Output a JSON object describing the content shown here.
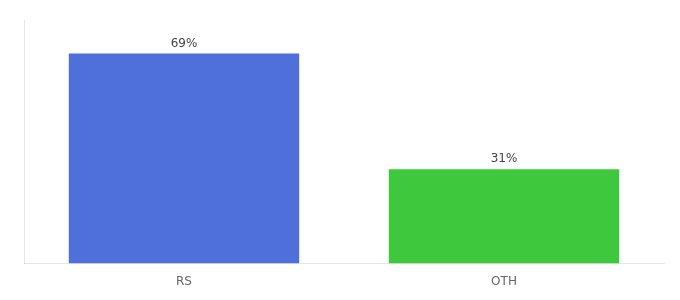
{
  "chart_data": {
    "type": "bar",
    "categories": [
      "RS",
      "OTH"
    ],
    "values": [
      69,
      31
    ],
    "value_labels": [
      "69%",
      "31%"
    ],
    "colors": [
      "#4f6fdb",
      "#3dc83d"
    ],
    "ylim": [
      0,
      80
    ],
    "grid": false,
    "data_labels": true,
    "tick_labels": "x"
  }
}
